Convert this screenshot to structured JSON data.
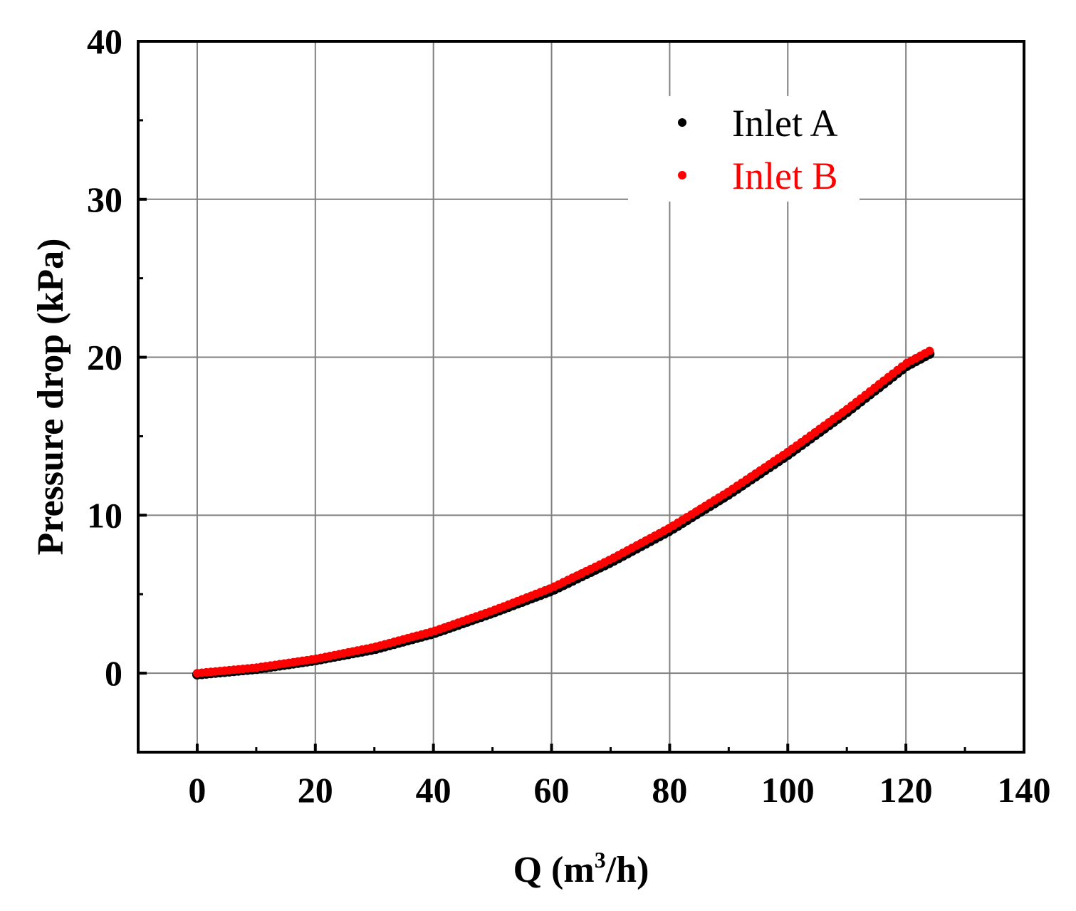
{
  "chart_data": {
    "type": "scatter",
    "title": "",
    "xlabel": {
      "base": "Q (m",
      "sup": "3",
      "tail": "/h)"
    },
    "ylabel": "Pressure drop (kPa)",
    "xlim": [
      -10,
      140
    ],
    "ylim": [
      -5,
      40
    ],
    "xticks": [
      0,
      20,
      40,
      60,
      80,
      100,
      120,
      140
    ],
    "yticks": [
      0,
      10,
      20,
      30,
      40
    ],
    "grid": true,
    "legend_position": "top-right",
    "series": [
      {
        "name": "Inlet A",
        "color": "#000000",
        "x": [
          0,
          10,
          20,
          30,
          40,
          50,
          60,
          70,
          80,
          90,
          100,
          110,
          120,
          124
        ],
        "y": [
          0,
          0.35,
          0.9,
          1.6,
          2.6,
          3.9,
          5.3,
          7.1,
          9.1,
          11.4,
          13.9,
          16.6,
          19.5,
          20.3
        ]
      },
      {
        "name": "Inlet B",
        "color": "#ff0000",
        "x": [
          0,
          10,
          20,
          30,
          40,
          50,
          60,
          70,
          80,
          90,
          100,
          110,
          120,
          124
        ],
        "y": [
          0,
          0.35,
          0.9,
          1.65,
          2.65,
          3.95,
          5.4,
          7.2,
          9.2,
          11.5,
          14.0,
          16.7,
          19.6,
          20.4
        ]
      }
    ]
  }
}
